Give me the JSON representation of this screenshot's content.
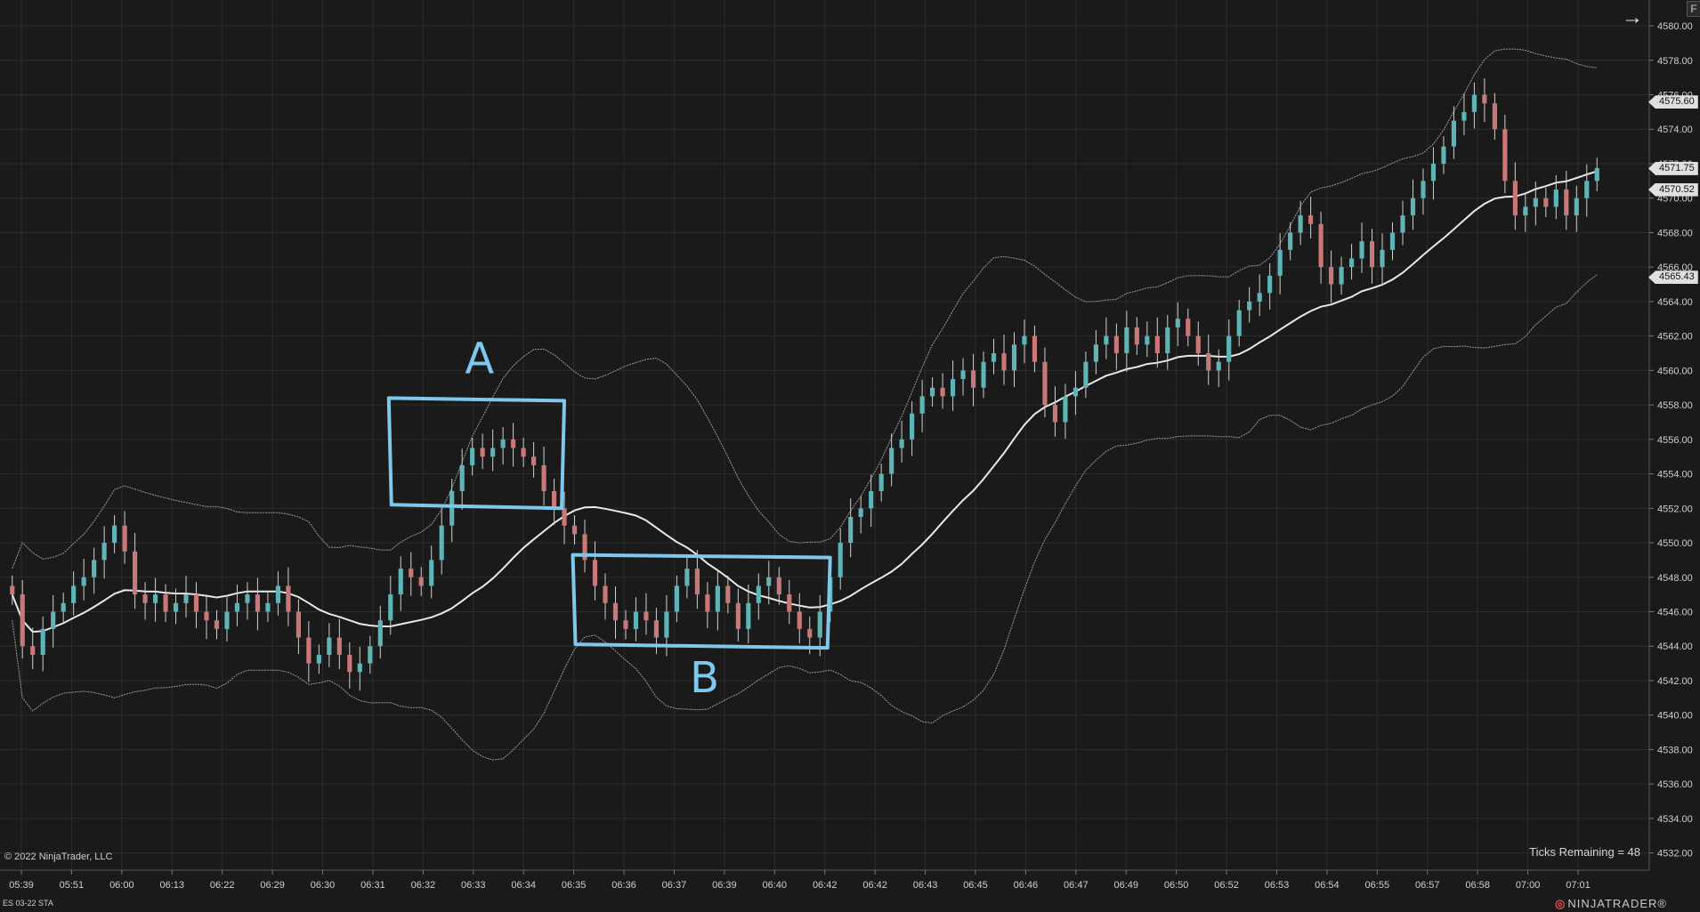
{
  "copyright": "© 2022 NinjaTrader, LLC",
  "ticks_remaining": "Ticks Remaining = 48",
  "instrument": "ES 03-22 STA",
  "brand": "NINJATRADER",
  "brand_mark": "®",
  "f_button_label": "F",
  "price_tags": [
    {
      "value": 4575.6,
      "label": "4575.60"
    },
    {
      "value": 4571.75,
      "label": "4571.75"
    },
    {
      "value": 4570.52,
      "label": "4570.52"
    },
    {
      "value": 4565.43,
      "label": "4565.43"
    }
  ],
  "annotations": [
    {
      "label": "A",
      "color": "#7ec8ee",
      "box": {
        "t0": 37,
        "t1": 54,
        "p_low": 4552.0,
        "p_high": 4558.4
      }
    },
    {
      "label": "B",
      "color": "#7ec8ee",
      "box": {
        "t0": 55,
        "t1": 80,
        "p_low": 4543.9,
        "p_high": 4549.3
      }
    }
  ],
  "chart_data": {
    "type": "candlestick",
    "title": "",
    "ylim": [
      4531.0,
      4581.5
    ],
    "y_ticks": [
      "4532.00",
      "4534.00",
      "4536.00",
      "4538.00",
      "4540.00",
      "4542.00",
      "4544.00",
      "4546.00",
      "4548.00",
      "4550.00",
      "4552.00",
      "4554.00",
      "4556.00",
      "4558.00",
      "4560.00",
      "4562.00",
      "4564.00",
      "4566.00",
      "4568.00",
      "4570.00",
      "4572.00",
      "4574.00",
      "4576.00",
      "4578.00",
      "4580.00"
    ],
    "x_ticks": [
      "05:39",
      "05:51",
      "06:00",
      "06:13",
      "06:22",
      "06:29",
      "06:30",
      "06:31",
      "06:32",
      "06:33",
      "06:34",
      "06:35",
      "06:36",
      "06:37",
      "06:39",
      "06:40",
      "06:42",
      "06:42",
      "06:43",
      "06:45",
      "06:46",
      "06:47",
      "06:49",
      "06:50",
      "06:52",
      "06:53",
      "06:54",
      "06:55",
      "06:57",
      "06:58",
      "07:00",
      "07:01"
    ],
    "colors": {
      "up": "#5fb5b5",
      "down": "#c87878",
      "middle_band": "#e8e8e8",
      "outer_band": "#9a9a9a"
    },
    "candle_closes": [
      4547.0,
      4544.0,
      4543.5,
      4545.0,
      4546.0,
      4546.5,
      4547.5,
      4548.0,
      4549.0,
      4550.0,
      4551.0,
      4549.5,
      4547.0,
      4546.5,
      4547.0,
      4546.0,
      4546.5,
      4547.0,
      4546.0,
      4545.5,
      4545.0,
      4546.0,
      4546.5,
      4547.0,
      4546.0,
      4546.5,
      4547.5,
      4546.0,
      4544.5,
      4543.0,
      4543.5,
      4544.5,
      4543.5,
      4542.5,
      4543.0,
      4544.0,
      4545.5,
      4547.0,
      4548.5,
      4548.0,
      4547.5,
      4549.0,
      4551.0,
      4553.0,
      4554.5,
      4555.5,
      4555.0,
      4555.5,
      4556.0,
      4555.5,
      4555.0,
      4554.5,
      4553.0,
      4552.0,
      4551.0,
      4550.5,
      4549.0,
      4547.5,
      4546.5,
      4545.5,
      4545.0,
      4546.0,
      4545.5,
      4544.5,
      4546.0,
      4547.5,
      4548.5,
      4547.0,
      4546.0,
      4547.5,
      4546.5,
      4545.0,
      4546.5,
      4547.5,
      4548.0,
      4547.0,
      4546.0,
      4545.0,
      4544.5,
      4546.0,
      4548.0,
      4550.0,
      4551.5,
      4552.0,
      4553.0,
      4554.0,
      4555.5,
      4556.0,
      4557.5,
      4558.5,
      4559.0,
      4558.5,
      4559.5,
      4560.0,
      4559.0,
      4560.5,
      4561.0,
      4560.0,
      4561.5,
      4562.0,
      4560.5,
      4558.0,
      4557.0,
      4558.5,
      4559.0,
      4560.5,
      4561.5,
      4562.0,
      4561.0,
      4562.5,
      4561.5,
      4562.0,
      4561.0,
      4562.5,
      4563.0,
      4562.0,
      4561.0,
      4560.0,
      4560.5,
      4562.0,
      4563.5,
      4564.0,
      4564.5,
      4565.5,
      4567.0,
      4568.0,
      4569.0,
      4568.5,
      4566.0,
      4565.0,
      4566.0,
      4566.5,
      4567.5,
      4566.0,
      4567.0,
      4568.0,
      4569.0,
      4570.0,
      4571.0,
      4572.0,
      4573.0,
      4574.5,
      4575.0,
      4576.0,
      4575.5,
      4574.0,
      4571.0,
      4569.0,
      4569.5,
      4570.0,
      4569.5,
      4570.5,
      4569.0,
      4570.0,
      4571.0,
      4571.75
    ],
    "last_price": 4571.75,
    "upper_band_last": 4575.6,
    "middle_band_last": 4570.52,
    "lower_band_last": 4565.43
  }
}
